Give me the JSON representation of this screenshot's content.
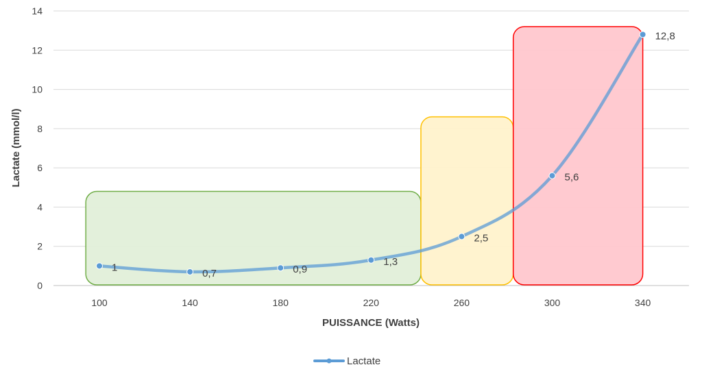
{
  "chart_data": {
    "type": "line",
    "xlabel": "PUISSANCE (Watts)",
    "ylabel": "Lactate (mmol/l)",
    "x": [
      100,
      140,
      180,
      220,
      260,
      300,
      340
    ],
    "x_tick_labels": [
      "100",
      "140",
      "180",
      "220",
      "260",
      "300",
      "340"
    ],
    "y_tick_labels": [
      "0",
      "2",
      "4",
      "6",
      "8",
      "10",
      "12",
      "14"
    ],
    "ylim": [
      0,
      14
    ],
    "grid": "horizontal",
    "legend_position": "bottom",
    "series": [
      {
        "name": "Lactate",
        "values": [
          1,
          0.7,
          0.9,
          1.3,
          2.5,
          5.6,
          12.8
        ],
        "data_labels": [
          "1",
          "0,7",
          "0,9",
          "1,3",
          "2,5",
          "5,6",
          "12,8"
        ],
        "color": "#5b9bd5"
      }
    ],
    "zones": [
      {
        "name": "green",
        "fill": "#e2efd9",
        "stroke": "#70ad47"
      },
      {
        "name": "yellow",
        "fill": "#fff2cc",
        "stroke": "#ffc000"
      },
      {
        "name": "red",
        "fill": "#ffc7ce",
        "stroke": "#ff0000"
      }
    ]
  }
}
